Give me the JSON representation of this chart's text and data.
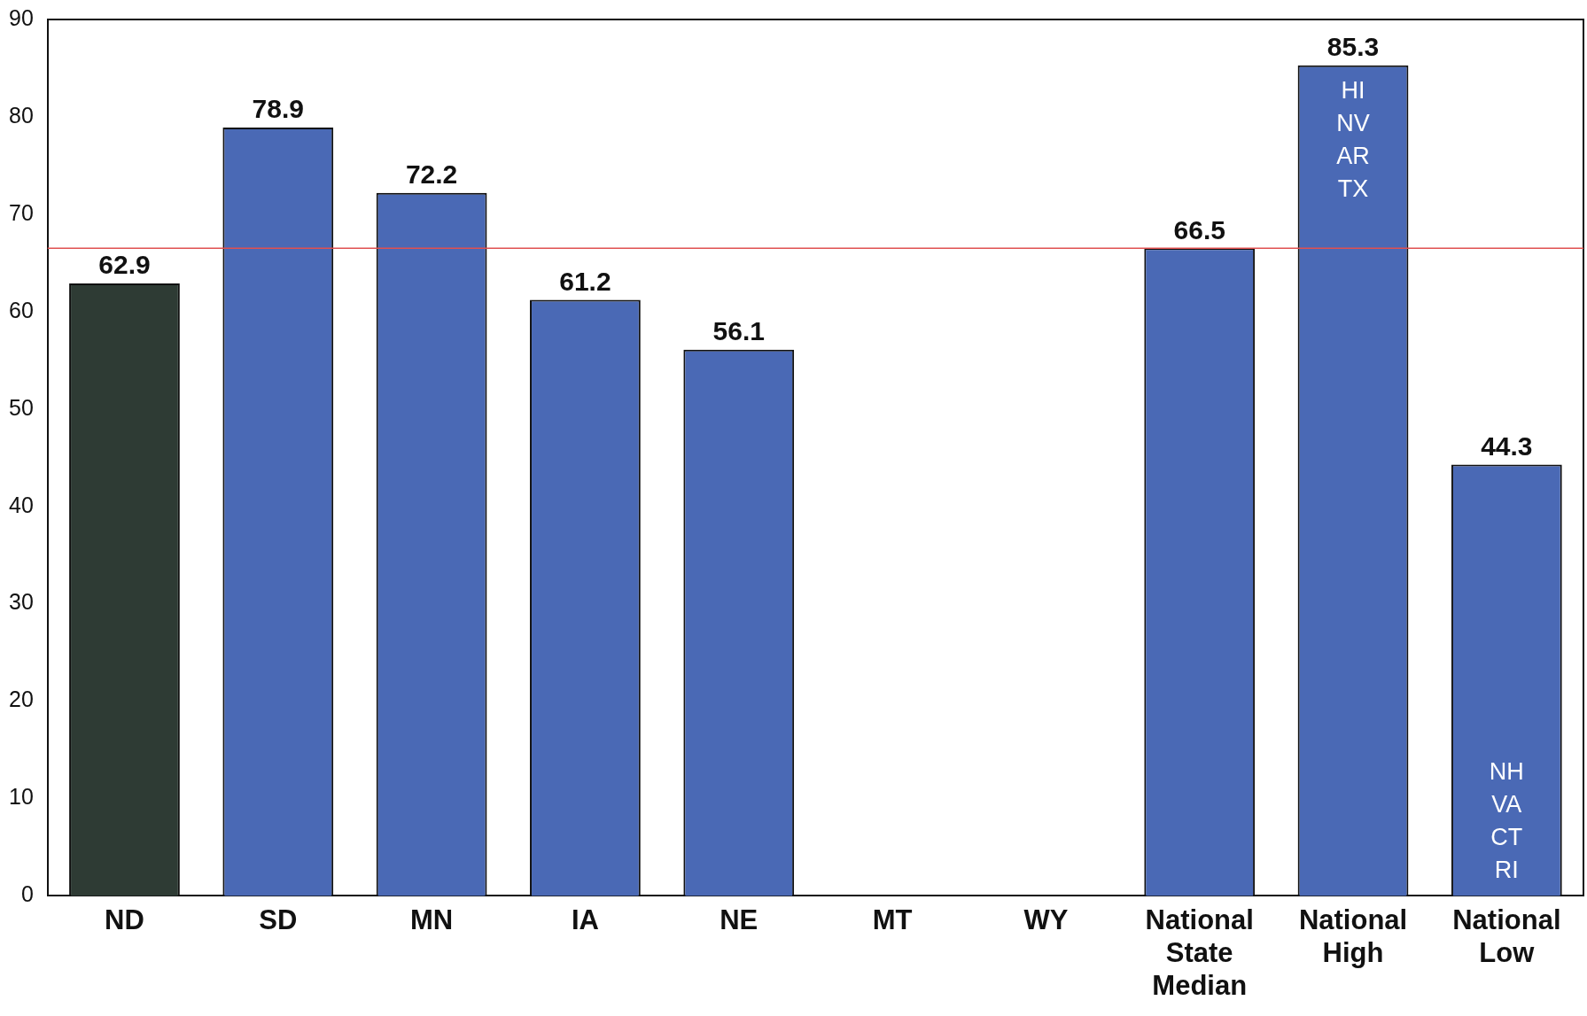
{
  "chart_data": {
    "type": "bar",
    "categories": [
      "ND",
      "SD",
      "MN",
      "IA",
      "NE",
      "MT",
      "WY",
      "National State Median",
      "National High",
      "National Low"
    ],
    "values": [
      62.9,
      78.9,
      72.2,
      61.2,
      56.1,
      null,
      null,
      66.5,
      85.3,
      44.3
    ],
    "colors": [
      "#2e3b34",
      "#4a69b5",
      "#4a69b5",
      "#4a69b5",
      "#4a69b5",
      "#4a69b5",
      "#4a69b5",
      "#4a69b5",
      "#4a69b5",
      "#4a69b5"
    ],
    "ylim": [
      0,
      90
    ],
    "yticks": [
      0,
      10,
      20,
      30,
      40,
      50,
      60,
      70,
      80,
      90
    ],
    "data_labels": true,
    "grid": false,
    "legend": false,
    "ref_lines": [
      {
        "axis": "y",
        "value": 66.5,
        "color": "#e05050"
      }
    ],
    "annotations": [
      "HI\nNV\nAR\nTX",
      "NH\nVA\nCT\nRI"
    ]
  }
}
